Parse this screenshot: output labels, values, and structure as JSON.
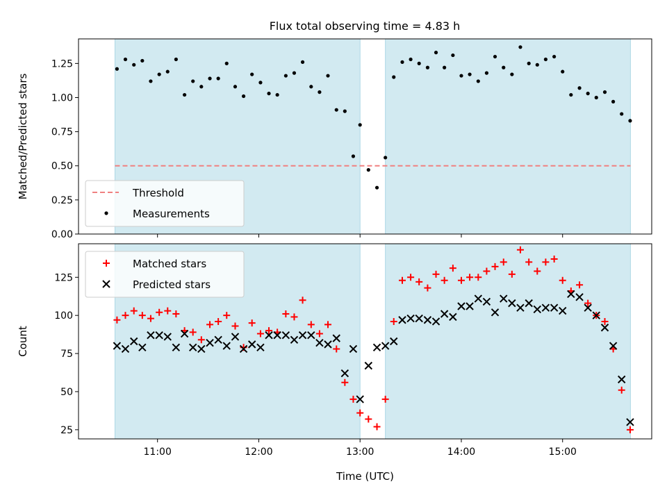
{
  "title": "Flux total observing time = 4.83 h",
  "colors": {
    "shade": "#add8e6",
    "threshold": "#f08080",
    "matched": "#ff0000",
    "predicted": "#000000",
    "measurement": "#000000"
  },
  "chart_data": [
    {
      "type": "scatter",
      "name": "ratio",
      "ylabel": "Matched/Predicted stars",
      "ylim": [
        0.0,
        1.43
      ],
      "yticks": [
        0.0,
        0.25,
        0.5,
        0.75,
        1.0,
        1.25
      ],
      "ytick_labels": [
        "0.00",
        "0.25",
        "0.50",
        "0.75",
        "1.00",
        "1.25"
      ],
      "xlim": [
        10.22,
        15.88
      ],
      "xticks": [
        11,
        12,
        13,
        14,
        15
      ],
      "shaded_intervals": [
        [
          10.58,
          13.0
        ],
        [
          13.25,
          15.67
        ]
      ],
      "threshold": 0.5,
      "legend": {
        "placement": "lower-left",
        "entries": [
          "Threshold",
          "Measurements"
        ]
      },
      "series": [
        {
          "name": "Measurements",
          "x": [
            10.6,
            10.683,
            10.767,
            10.85,
            10.933,
            11.017,
            11.1,
            11.183,
            11.267,
            11.35,
            11.433,
            11.517,
            11.6,
            11.683,
            11.767,
            11.85,
            11.933,
            12.017,
            12.1,
            12.183,
            12.267,
            12.35,
            12.433,
            12.517,
            12.6,
            12.683,
            12.767,
            12.85,
            12.933,
            13.0,
            13.083,
            13.167,
            13.25,
            13.333,
            13.417,
            13.5,
            13.583,
            13.667,
            13.75,
            13.833,
            13.917,
            14.0,
            14.083,
            14.167,
            14.25,
            14.333,
            14.417,
            14.5,
            14.583,
            14.667,
            14.75,
            14.833,
            14.917,
            15.0,
            15.083,
            15.167,
            15.25,
            15.333,
            15.417,
            15.5,
            15.583,
            15.667
          ],
          "values": [
            1.21,
            1.28,
            1.24,
            1.27,
            1.12,
            1.17,
            1.19,
            1.28,
            1.02,
            1.12,
            1.08,
            1.14,
            1.14,
            1.25,
            1.08,
            1.01,
            1.17,
            1.11,
            1.03,
            1.02,
            1.16,
            1.18,
            1.26,
            1.08,
            1.04,
            1.16,
            0.91,
            0.9,
            0.57,
            0.8,
            0.47,
            0.34,
            0.56,
            1.15,
            1.26,
            1.28,
            1.25,
            1.22,
            1.33,
            1.22,
            1.31,
            1.16,
            1.17,
            1.12,
            1.18,
            1.3,
            1.22,
            1.17,
            1.37,
            1.25,
            1.24,
            1.28,
            1.3,
            1.19,
            1.02,
            1.07,
            1.03,
            1.0,
            1.04,
            0.97,
            0.88,
            0.83
          ]
        }
      ]
    },
    {
      "type": "scatter",
      "name": "counts",
      "xlabel": "Time (UTC)",
      "ylabel": "Count",
      "ylim": [
        19,
        147
      ],
      "yticks": [
        25,
        50,
        75,
        100,
        125
      ],
      "ytick_labels": [
        "25",
        "50",
        "75",
        "100",
        "125"
      ],
      "xlim": [
        10.22,
        15.88
      ],
      "xticks": [
        11,
        12,
        13,
        14,
        15
      ],
      "xtick_labels": [
        "11:00",
        "12:00",
        "13:00",
        "14:00",
        "15:00"
      ],
      "shaded_intervals": [
        [
          10.58,
          13.0
        ],
        [
          13.25,
          15.67
        ]
      ],
      "legend": {
        "placement": "upper-left",
        "entries": [
          "Matched stars",
          "Predicted stars"
        ]
      },
      "series": [
        {
          "name": "Matched stars",
          "marker": "plus",
          "x": [
            10.6,
            10.683,
            10.767,
            10.85,
            10.933,
            11.017,
            11.1,
            11.183,
            11.267,
            11.35,
            11.433,
            11.517,
            11.6,
            11.683,
            11.767,
            11.85,
            11.933,
            12.017,
            12.1,
            12.183,
            12.267,
            12.35,
            12.433,
            12.517,
            12.6,
            12.683,
            12.767,
            12.85,
            12.933,
            13.0,
            13.083,
            13.167,
            13.25,
            13.333,
            13.417,
            13.5,
            13.583,
            13.667,
            13.75,
            13.833,
            13.917,
            14.0,
            14.083,
            14.167,
            14.25,
            14.333,
            14.417,
            14.5,
            14.583,
            14.667,
            14.75,
            14.833,
            14.917,
            15.0,
            15.083,
            15.167,
            15.25,
            15.333,
            15.417,
            15.5,
            15.583,
            15.667
          ],
          "values": [
            97,
            100,
            103,
            100,
            98,
            102,
            103,
            101,
            90,
            89,
            84,
            94,
            96,
            100,
            93,
            79,
            95,
            88,
            90,
            89,
            101,
            99,
            110,
            94,
            88,
            94,
            78,
            56,
            45,
            36,
            32,
            27,
            45,
            96,
            123,
            125,
            122,
            118,
            127,
            123,
            131,
            123,
            125,
            125,
            129,
            132,
            135,
            127,
            143,
            135,
            129,
            135,
            137,
            123,
            116,
            120,
            108,
            100,
            96,
            78,
            51,
            25
          ]
        },
        {
          "name": "Predicted stars",
          "marker": "x",
          "x": [
            10.6,
            10.683,
            10.767,
            10.85,
            10.933,
            11.017,
            11.1,
            11.183,
            11.267,
            11.35,
            11.433,
            11.517,
            11.6,
            11.683,
            11.767,
            11.85,
            11.933,
            12.017,
            12.1,
            12.183,
            12.267,
            12.35,
            12.433,
            12.517,
            12.6,
            12.683,
            12.767,
            12.85,
            12.933,
            13.0,
            13.083,
            13.167,
            13.25,
            13.333,
            13.417,
            13.5,
            13.583,
            13.667,
            13.75,
            13.833,
            13.917,
            14.0,
            14.083,
            14.167,
            14.25,
            14.333,
            14.417,
            14.5,
            14.583,
            14.667,
            14.75,
            14.833,
            14.917,
            15.0,
            15.083,
            15.167,
            15.25,
            15.333,
            15.417,
            15.5,
            15.583,
            15.667
          ],
          "values": [
            80,
            78,
            83,
            79,
            87,
            87,
            86,
            79,
            88,
            79,
            78,
            82,
            84,
            80,
            86,
            78,
            81,
            79,
            87,
            87,
            87,
            84,
            87,
            87,
            82,
            81,
            85,
            62,
            78,
            45,
            67,
            79,
            80,
            83,
            97,
            98,
            98,
            97,
            96,
            101,
            99,
            106,
            106,
            111,
            109,
            102,
            111,
            108,
            105,
            108,
            104,
            105,
            105,
            103,
            114,
            112,
            105,
            100,
            92,
            80,
            58,
            30
          ]
        }
      ]
    }
  ]
}
